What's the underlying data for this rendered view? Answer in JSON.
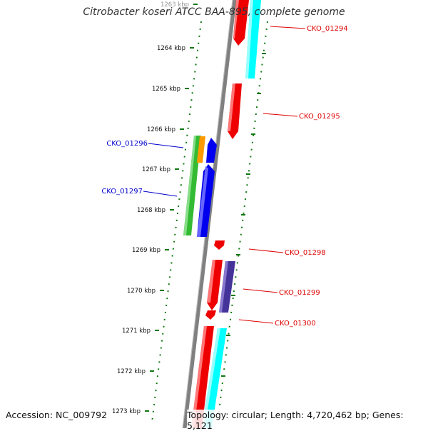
{
  "title": "Citrobacter koseri ATCC BAA-895, complete genome",
  "footer": {
    "accession": "Accession: NC_009792",
    "summary": "Topology: circular; Length: 4,720,462 bp; Genes: 5,121"
  },
  "colors": {
    "forward_label": "#dd0000",
    "reverse_label": "#0000cc",
    "backbone": "#808080",
    "tick": "#117711"
  },
  "ruler": {
    "ticks": [
      "1263 kbp",
      "1264 kbp",
      "1265 kbp",
      "1266 kbp",
      "1267 kbp",
      "1268 kbp",
      "1269 kbp",
      "1270 kbp",
      "1271 kbp",
      "1272 kbp",
      "1273 kbp"
    ]
  },
  "labels": [
    {
      "text": "CKO_01294",
      "strand": "forward"
    },
    {
      "text": "CKO_01295",
      "strand": "forward"
    },
    {
      "text": "CKO_01296",
      "strand": "reverse"
    },
    {
      "text": "CKO_01297",
      "strand": "reverse"
    },
    {
      "text": "CKO_01298",
      "strand": "forward"
    },
    {
      "text": "CKO_01299",
      "strand": "forward"
    },
    {
      "text": "CKO_01300",
      "strand": "forward"
    }
  ]
}
